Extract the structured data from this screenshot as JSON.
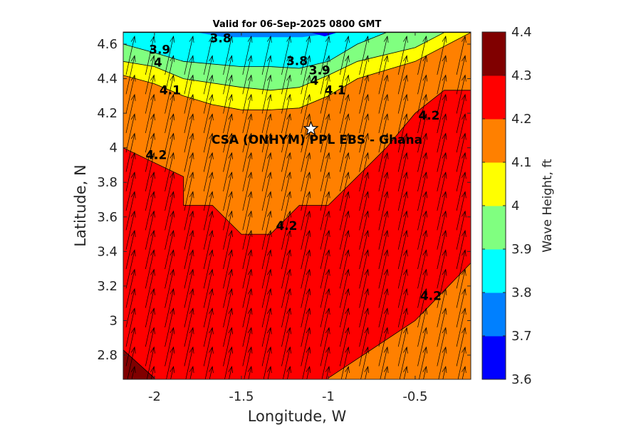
{
  "chart_data": {
    "type": "contour",
    "title": "Valid for 06-Sep-2025 0800 GMT",
    "xlabel": "Longitude, W",
    "ylabel": "Latitude, N",
    "xlim": [
      -2.18,
      -0.18
    ],
    "ylim": [
      2.66,
      4.67
    ],
    "x_ticks": [
      -2,
      -1.5,
      -1,
      -0.5
    ],
    "x_tick_labels": [
      "-2",
      "-1.5",
      "-1",
      "-0.5"
    ],
    "y_ticks": [
      2.8,
      3,
      3.2,
      3.4,
      3.6,
      3.8,
      4,
      4.2,
      4.4,
      4.6
    ],
    "y_tick_labels": [
      "2.8",
      "3",
      "3.2",
      "3.4",
      "3.6",
      "3.8",
      "4",
      "4.2",
      "4.4",
      "4.6"
    ],
    "colorbar": {
      "label": "Wave Height, ft",
      "range": [
        3.6,
        4.4
      ],
      "ticks": [
        "3.6",
        "3.7",
        "3.8",
        "3.9",
        "4",
        "4.1",
        "4.2",
        "4.3",
        "4.4"
      ],
      "colors": [
        "#0000ff",
        "#0080ff",
        "#00ffff",
        "#80ff80",
        "#ffff00",
        "#ff8000",
        "#ff0000",
        "#800000"
      ]
    },
    "levels": [
      {
        "value": 3.8,
        "color": "#00ffff"
      },
      {
        "value": 3.9,
        "color": "#80ff80"
      },
      {
        "value": 4.0,
        "color": "#ffff00"
      },
      {
        "value": 4.1,
        "color": "#ff8000"
      },
      {
        "value": 4.2,
        "color": "#ff0000"
      },
      {
        "value": 4.3,
        "color": "#800000"
      }
    ],
    "contours": [
      {
        "value": 3.8,
        "points": [
          [
            -2.18,
            4.667
          ],
          [
            -1.833,
            4.667
          ],
          [
            -1.5,
            4.667
          ],
          [
            -1.167,
            4.667
          ],
          [
            -1.0,
            4.667
          ],
          [
            -0.833,
            4.667
          ],
          [
            -0.18,
            4.667
          ]
        ]
      },
      {
        "value": 3.9,
        "points": [
          [
            -2.18,
            4.6
          ],
          [
            -2.0,
            4.55
          ],
          [
            -1.833,
            4.5
          ],
          [
            -1.5,
            4.47
          ],
          [
            -1.333,
            4.47
          ],
          [
            -1.167,
            4.46
          ],
          [
            -1.0,
            4.5
          ],
          [
            -0.833,
            4.6
          ],
          [
            -0.667,
            4.667
          ]
        ]
      },
      {
        "value": 4.0,
        "points": [
          [
            -2.18,
            4.5
          ],
          [
            -2.0,
            4.47
          ],
          [
            -1.833,
            4.4
          ],
          [
            -1.5,
            4.35
          ],
          [
            -1.333,
            4.333
          ],
          [
            -1.167,
            4.35
          ],
          [
            -1.0,
            4.42
          ],
          [
            -0.833,
            4.5
          ],
          [
            -0.5,
            4.58
          ],
          [
            -0.333,
            4.667
          ]
        ]
      },
      {
        "value": 4.1,
        "points": [
          [
            -2.18,
            4.42
          ],
          [
            -2.0,
            4.37
          ],
          [
            -1.833,
            4.3
          ],
          [
            -1.667,
            4.25
          ],
          [
            -1.5,
            4.22
          ],
          [
            -1.333,
            4.22
          ],
          [
            -1.167,
            4.23
          ],
          [
            -1.0,
            4.3
          ],
          [
            -0.833,
            4.4
          ],
          [
            -0.5,
            4.5
          ],
          [
            -0.18,
            4.667
          ]
        ]
      },
      {
        "value": 4.2,
        "points": [
          [
            -2.18,
            4.0
          ],
          [
            -1.833,
            3.833
          ],
          [
            -1.833,
            3.667
          ],
          [
            -1.667,
            3.667
          ],
          [
            -1.5,
            3.5
          ],
          [
            -1.333,
            3.5
          ],
          [
            -1.167,
            3.667
          ],
          [
            -1.0,
            3.667
          ],
          [
            -0.833,
            3.833
          ],
          [
            -0.667,
            4.0
          ],
          [
            -0.5,
            4.2
          ],
          [
            -0.333,
            4.333
          ],
          [
            -0.18,
            4.333
          ]
        ]
      },
      {
        "value": 4.2,
        "points": [
          [
            -1.0,
            2.667
          ],
          [
            -0.5,
            3.0
          ],
          [
            -0.18,
            3.333
          ]
        ]
      },
      {
        "value": 4.3,
        "points": [
          [
            -2.18,
            2.83
          ],
          [
            -2.0,
            2.667
          ]
        ]
      }
    ],
    "contour_labels": [
      {
        "text": "3.8",
        "lon": -1.62,
        "lat": 4.63
      },
      {
        "text": "3.9",
        "lon": -1.97,
        "lat": 4.565
      },
      {
        "text": "4",
        "lon": -1.98,
        "lat": 4.49
      },
      {
        "text": "3.8",
        "lon": -1.18,
        "lat": 4.5
      },
      {
        "text": "3.9",
        "lon": -1.05,
        "lat": 4.445
      },
      {
        "text": "4",
        "lon": -1.08,
        "lat": 4.385
      },
      {
        "text": "4.1",
        "lon": -1.91,
        "lat": 4.33
      },
      {
        "text": "4.1",
        "lon": -0.96,
        "lat": 4.33
      },
      {
        "text": "4.2",
        "lon": -1.99,
        "lat": 3.955
      },
      {
        "text": "4.2",
        "lon": -0.42,
        "lat": 4.185
      },
      {
        "text": "4.2",
        "lon": -1.24,
        "lat": 3.545
      },
      {
        "text": "4.2",
        "lon": -0.41,
        "lat": 3.14
      }
    ],
    "site": {
      "name": "CSA (ONHYM) PPL EBS  - Ghana",
      "lon": -1.1,
      "lat": 4.11
    },
    "wind_vectors": {
      "dlon": -0.014,
      "dlat": 0.028
    }
  }
}
